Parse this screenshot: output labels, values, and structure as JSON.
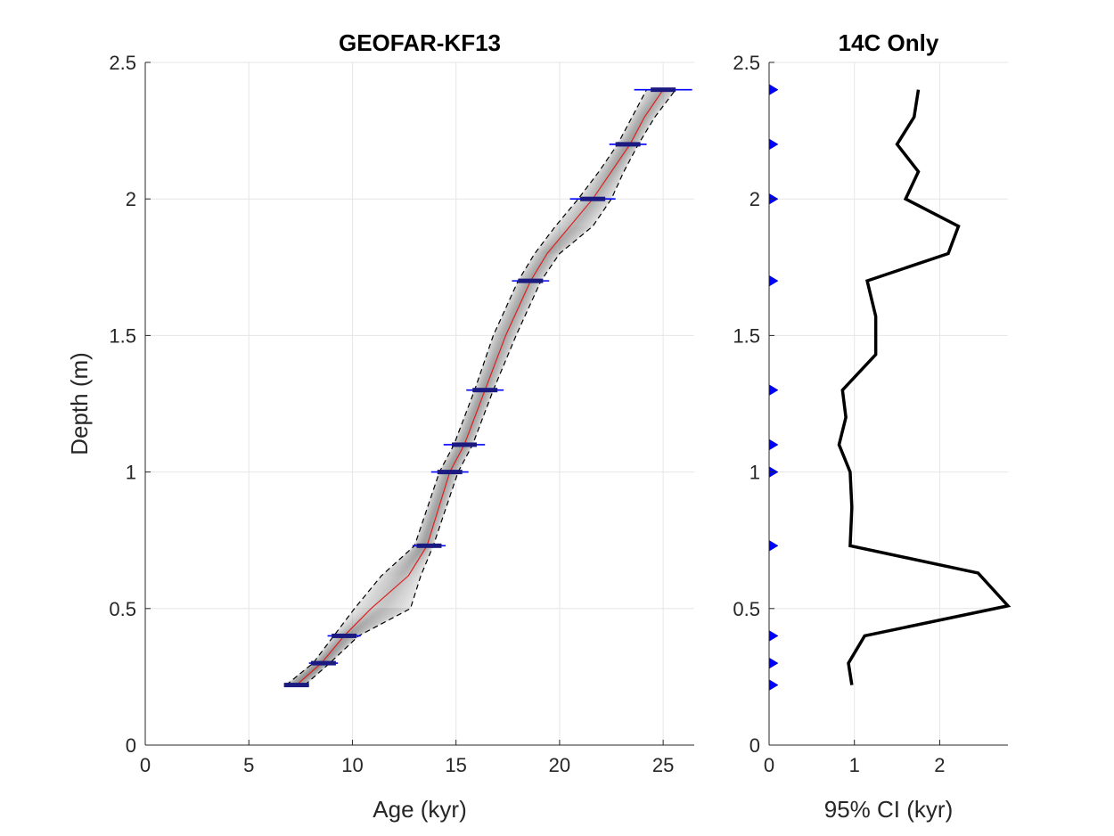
{
  "chart_data": [
    {
      "type": "line",
      "title": "GEOFAR-KF13",
      "xlabel": "Age (kyr)",
      "ylabel": "Depth (m)",
      "xlim": [
        0,
        26.5
      ],
      "ylim": [
        0,
        2.5
      ],
      "xticks": [
        0,
        5,
        10,
        15,
        20,
        25
      ],
      "yticks": [
        0,
        0.5,
        1,
        1.5,
        2,
        2.5
      ],
      "ytick_labels": [
        "0",
        "0.5",
        "1",
        "1.5",
        "2",
        "2.5"
      ],
      "grid": true,
      "depths": [
        0.22,
        0.3,
        0.4,
        0.5,
        0.62,
        0.73,
        1.0,
        1.1,
        1.3,
        1.5,
        1.7,
        1.8,
        1.9,
        2.0,
        2.1,
        2.2,
        2.3,
        2.4
      ],
      "median_age": [
        7.3,
        8.5,
        9.6,
        10.9,
        12.7,
        13.6,
        14.7,
        15.4,
        16.4,
        17.4,
        18.6,
        19.4,
        20.5,
        21.6,
        22.5,
        23.4,
        24.1,
        25.0
      ],
      "lower_95": [
        6.8,
        8.1,
        9.1,
        10.1,
        11.4,
        13.0,
        14.2,
        14.9,
        15.9,
        16.8,
        18.0,
        18.8,
        19.8,
        20.9,
        21.9,
        22.8,
        23.5,
        24.2
      ],
      "upper_95": [
        7.7,
        8.9,
        10.3,
        12.8,
        13.3,
        13.9,
        15.1,
        15.8,
        16.8,
        17.9,
        19.1,
        20.0,
        21.6,
        22.5,
        23.1,
        23.8,
        24.6,
        25.6
      ],
      "dates": [
        {
          "depth": 0.22,
          "age": 7.3,
          "err": 0.6
        },
        {
          "depth": 0.3,
          "age": 8.6,
          "err": 0.7
        },
        {
          "depth": 0.4,
          "age": 9.6,
          "err": 0.8
        },
        {
          "depth": 0.73,
          "age": 13.7,
          "err": 0.8
        },
        {
          "depth": 1.0,
          "age": 14.7,
          "err": 0.9
        },
        {
          "depth": 1.1,
          "age": 15.4,
          "err": 1.0
        },
        {
          "depth": 1.3,
          "age": 16.4,
          "err": 0.9
        },
        {
          "depth": 1.7,
          "age": 18.6,
          "err": 0.9
        },
        {
          "depth": 2.0,
          "age": 21.6,
          "err": 1.1
        },
        {
          "depth": 2.2,
          "age": 23.3,
          "err": 0.9
        },
        {
          "depth": 2.4,
          "age": 25.0,
          "err": 1.4
        }
      ],
      "colors": {
        "median": "#e02020",
        "bounds": "#000000",
        "dates": "#0000ff",
        "ensemble": "#808080"
      }
    },
    {
      "type": "line",
      "title": "14C Only",
      "xlabel": "95% CI (kyr)",
      "ylabel": "",
      "xlim": [
        0,
        2.8
      ],
      "ylim": [
        0,
        2.5
      ],
      "xticks": [
        0,
        1,
        2
      ],
      "yticks": [
        0,
        0.5,
        1,
        1.5,
        2,
        2.5
      ],
      "ytick_labels": [
        "0",
        "0.5",
        "1",
        "1.5",
        "2",
        "2.5"
      ],
      "grid": true,
      "depths": [
        0.22,
        0.3,
        0.4,
        0.51,
        0.63,
        0.73,
        0.87,
        1.0,
        1.1,
        1.2,
        1.3,
        1.43,
        1.57,
        1.7,
        1.8,
        1.9,
        2.0,
        2.1,
        2.2,
        2.3,
        2.4
      ],
      "ci_values": [
        0.97,
        0.93,
        1.12,
        2.8,
        2.45,
        0.95,
        0.97,
        0.95,
        0.82,
        0.9,
        0.86,
        1.25,
        1.25,
        1.15,
        2.1,
        2.22,
        1.6,
        1.75,
        1.5,
        1.7,
        1.75
      ],
      "markers": {
        "depths": [
          0.22,
          0.3,
          0.4,
          0.73,
          1.0,
          1.1,
          1.3,
          1.7,
          2.0,
          2.2,
          2.4
        ],
        "x": 0
      },
      "colors": {
        "line": "#000000",
        "markers": "#0000ff"
      }
    }
  ]
}
